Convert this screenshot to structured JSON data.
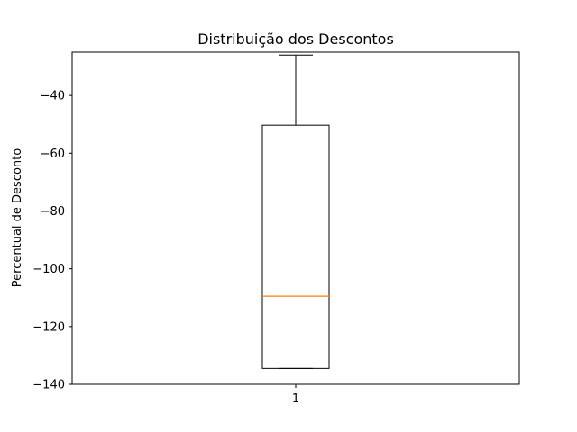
{
  "chart_data": {
    "type": "box",
    "title": "Distribuição dos Descontos",
    "xlabel": "",
    "ylabel": "Percentual de Desconto",
    "categories": [
      "1"
    ],
    "ylim": [
      -140,
      -25
    ],
    "yticks": [
      -40,
      -60,
      -80,
      -100,
      -120,
      -140
    ],
    "ytick_labels": [
      "−40",
      "−60",
      "−80",
      "−100",
      "−120",
      "−140"
    ],
    "xticks": [
      "1"
    ],
    "boxes": [
      {
        "label": "1",
        "whisker_low": -134.5,
        "q1": -134.5,
        "median": -109.5,
        "q3": -50.3,
        "whisker_high": -26.0
      }
    ],
    "grid": false,
    "colors": {
      "box": "#000000",
      "median": "#ff7f0e",
      "whisker": "#000000"
    }
  }
}
